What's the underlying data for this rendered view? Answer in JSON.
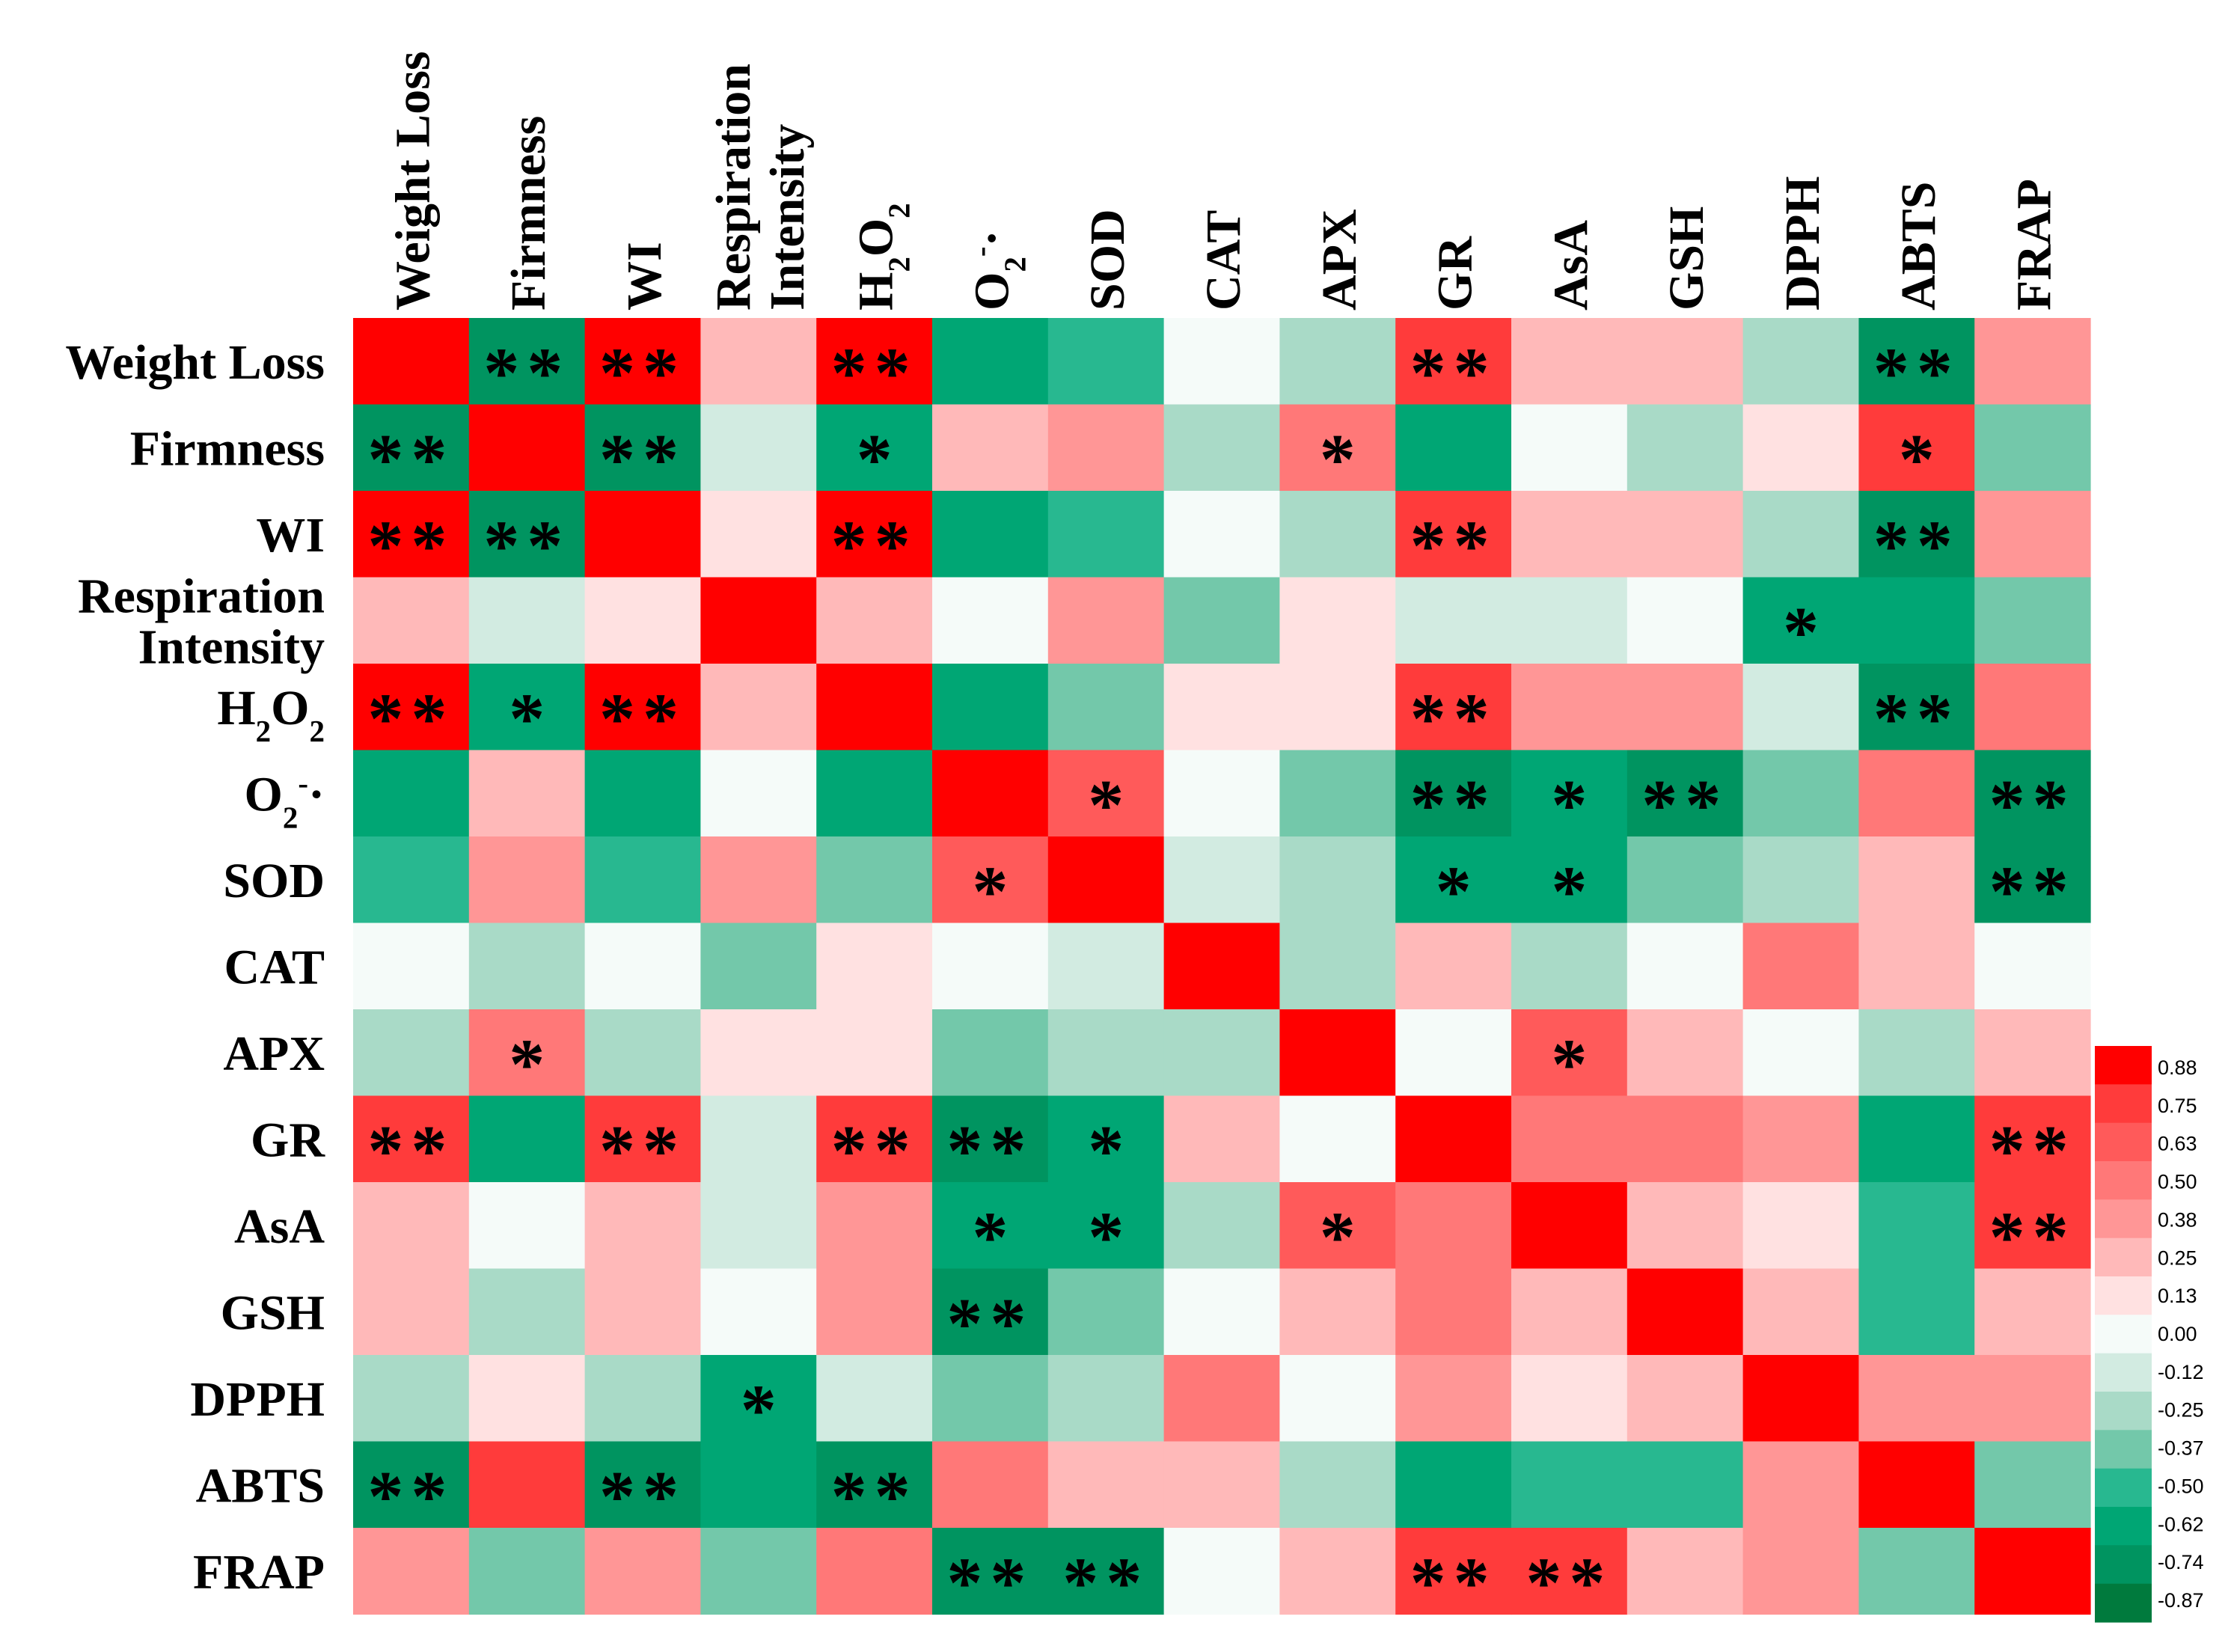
{
  "chart_data": {
    "type": "heatmap",
    "variables": [
      {
        "key": "weight_loss",
        "label": "Weight Loss"
      },
      {
        "key": "firmness",
        "label": "Firmness"
      },
      {
        "key": "wi",
        "label": "WI"
      },
      {
        "key": "respiration_intensity",
        "label": "Respiration Intensity",
        "label_lines": [
          "Respiration",
          "Intensity"
        ]
      },
      {
        "key": "h2o2",
        "label": "H2O2",
        "base": "H",
        "sub1": "2",
        "mid": "O",
        "sub2": "2"
      },
      {
        "key": "o2_radical",
        "label": "O2-·",
        "base": "O",
        "sub1": "2",
        "sup": "-",
        "tail": "·"
      },
      {
        "key": "sod",
        "label": "SOD"
      },
      {
        "key": "cat",
        "label": "CAT"
      },
      {
        "key": "apx",
        "label": "APX"
      },
      {
        "key": "gr",
        "label": "GR"
      },
      {
        "key": "asa",
        "label": "AsA"
      },
      {
        "key": "gsh",
        "label": "GSH"
      },
      {
        "key": "dpph",
        "label": "DPPH"
      },
      {
        "key": "abts",
        "label": "ABTS"
      },
      {
        "key": "frap",
        "label": "FRAP"
      }
    ],
    "values": [
      [
        1.0,
        -0.78,
        0.85,
        0.28,
        0.82,
        -0.62,
        -0.52,
        0.02,
        -0.25,
        0.72,
        0.25,
        0.25,
        -0.25,
        -0.8,
        0.4
      ],
      [
        -0.78,
        1.0,
        -0.8,
        -0.14,
        -0.68,
        0.28,
        0.4,
        -0.25,
        0.55,
        -0.62,
        0.02,
        -0.25,
        0.1,
        0.7,
        -0.4
      ],
      [
        0.85,
        -0.8,
        1.0,
        0.12,
        0.85,
        -0.62,
        -0.52,
        0.02,
        -0.25,
        0.72,
        0.25,
        0.25,
        -0.25,
        -0.8,
        0.4
      ],
      [
        0.28,
        -0.14,
        0.12,
        1.0,
        0.3,
        0.02,
        0.4,
        -0.4,
        0.14,
        -0.14,
        -0.14,
        0.02,
        -0.68,
        -0.62,
        -0.4
      ],
      [
        0.82,
        -0.68,
        0.85,
        0.3,
        1.0,
        -0.62,
        -0.4,
        0.12,
        0.12,
        0.72,
        0.38,
        0.38,
        -0.14,
        -0.8,
        0.55
      ],
      [
        -0.62,
        0.28,
        -0.62,
        0.02,
        -0.62,
        1.0,
        0.62,
        0.02,
        -0.4,
        -0.8,
        -0.68,
        -0.7,
        -0.4,
        0.55,
        -0.8
      ],
      [
        -0.52,
        0.4,
        -0.52,
        0.4,
        -0.4,
        0.62,
        1.0,
        -0.14,
        -0.25,
        -0.62,
        -0.68,
        -0.4,
        -0.3,
        0.3,
        -0.8
      ],
      [
        0.02,
        -0.25,
        0.02,
        -0.4,
        0.12,
        0.02,
        -0.14,
        1.0,
        -0.25,
        0.28,
        -0.25,
        0.02,
        0.5,
        0.28,
        0.02
      ],
      [
        -0.25,
        0.55,
        -0.25,
        0.14,
        0.14,
        -0.4,
        -0.25,
        -0.25,
        1.0,
        0.02,
        0.62,
        0.25,
        0.02,
        -0.25,
        0.28
      ],
      [
        0.72,
        -0.62,
        0.72,
        -0.14,
        0.72,
        -0.8,
        -0.62,
        0.28,
        0.02,
        1.0,
        0.5,
        0.5,
        0.4,
        -0.62,
        0.75
      ],
      [
        0.25,
        0.02,
        0.25,
        -0.14,
        0.38,
        -0.68,
        -0.68,
        -0.25,
        0.62,
        0.5,
        1.0,
        0.25,
        0.1,
        -0.52,
        0.8
      ],
      [
        0.25,
        -0.25,
        0.25,
        0.02,
        0.38,
        -0.7,
        -0.4,
        0.02,
        0.25,
        0.5,
        0.25,
        1.0,
        0.28,
        -0.52,
        0.28
      ],
      [
        -0.25,
        0.1,
        -0.25,
        -0.68,
        -0.14,
        -0.4,
        -0.3,
        0.5,
        0.02,
        0.4,
        0.1,
        0.28,
        1.0,
        0.4,
        0.4
      ],
      [
        -0.8,
        0.7,
        -0.8,
        -0.62,
        -0.8,
        0.55,
        0.3,
        0.28,
        -0.25,
        -0.62,
        -0.52,
        -0.52,
        0.4,
        1.0,
        -0.4
      ],
      [
        0.4,
        -0.4,
        0.4,
        -0.4,
        0.55,
        -0.8,
        -0.8,
        0.02,
        0.28,
        0.75,
        0.8,
        0.28,
        0.4,
        -0.4,
        1.0
      ]
    ],
    "significance": [
      [
        "",
        "**",
        "**",
        "",
        "**",
        "",
        "",
        "",
        "",
        "**",
        "",
        "",
        "",
        "**",
        ""
      ],
      [
        "**",
        "",
        "**",
        "",
        "*",
        "",
        "",
        "",
        "*",
        "",
        "",
        "",
        "",
        "*",
        ""
      ],
      [
        "**",
        "**",
        "",
        "",
        "**",
        "",
        "",
        "",
        "",
        "**",
        "",
        "",
        "",
        "**",
        ""
      ],
      [
        "",
        "",
        "",
        "",
        "",
        "",
        "",
        "",
        "",
        "",
        "",
        "",
        "*",
        "",
        ""
      ],
      [
        "**",
        "*",
        "**",
        "",
        "",
        "",
        "",
        "",
        "",
        "**",
        "",
        "",
        "",
        "**",
        ""
      ],
      [
        "",
        "",
        "",
        "",
        "",
        "",
        "*",
        "",
        "",
        "**",
        "*",
        "**",
        "",
        "",
        "**"
      ],
      [
        "",
        "",
        "",
        "",
        "",
        "*",
        "",
        "",
        "",
        "*",
        "*",
        "",
        "",
        "",
        "**"
      ],
      [
        "",
        "",
        "",
        "",
        "",
        "",
        "",
        "",
        "",
        "",
        "",
        "",
        "",
        "",
        ""
      ],
      [
        "",
        "*",
        "",
        "",
        "",
        "",
        "",
        "",
        "",
        "",
        "*",
        "",
        "",
        "",
        ""
      ],
      [
        "**",
        "",
        "**",
        "",
        "**",
        "**",
        "*",
        "",
        "",
        "",
        "",
        "",
        "",
        "",
        "**"
      ],
      [
        "",
        "",
        "",
        "",
        "",
        "*",
        "*",
        "",
        "*",
        "",
        "",
        "",
        "",
        "",
        "**"
      ],
      [
        "",
        "",
        "",
        "",
        "",
        "**",
        "",
        "",
        "",
        "",
        "",
        "",
        "",
        "",
        ""
      ],
      [
        "",
        "",
        "",
        "*",
        "",
        "",
        "",
        "",
        "",
        "",
        "",
        "",
        "",
        "",
        ""
      ],
      [
        "**",
        "",
        "**",
        "",
        "**",
        "",
        "",
        "",
        "",
        "",
        "",
        "",
        "",
        "",
        ""
      ],
      [
        "",
        "",
        "",
        "",
        "",
        "**",
        "**",
        "",
        "",
        "**",
        "**",
        "",
        "",
        "",
        ""
      ]
    ],
    "legend": {
      "placement": "right-bottom",
      "range": [
        -0.87,
        0.88
      ],
      "ticks": [
        "0.88",
        "0.75",
        "0.63",
        "0.50",
        "0.38",
        "0.25",
        "0.13",
        "0.00",
        "-0.12",
        "-0.25",
        "-0.37",
        "-0.50",
        "-0.62",
        "-0.74",
        "-0.87"
      ]
    },
    "colors": {
      "bins_high_to_low": [
        "#ff0000",
        "#ff3b3b",
        "#ff5a5a",
        "#ff7878",
        "#ff9696",
        "#ffb9b9",
        "#ffe1e1",
        "#f5fbf9",
        "#d2ebe1",
        "#a9dac7",
        "#73c8aa",
        "#28b890",
        "#00a674",
        "#009460",
        "#007a3d"
      ]
    }
  }
}
